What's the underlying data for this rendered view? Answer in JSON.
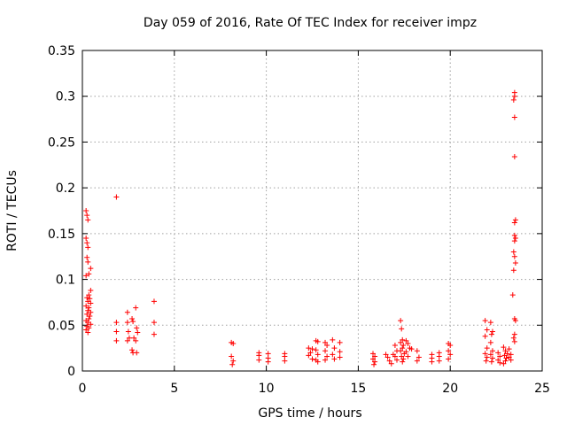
{
  "chart_data": {
    "type": "scatter",
    "title": "Day 059 of 2016, Rate Of TEC Index for receiver impz",
    "xlabel": "GPS time / hours",
    "ylabel": "ROTI / TECUs",
    "xlim": [
      0,
      25
    ],
    "ylim": [
      0,
      0.35
    ],
    "xticks": [
      0,
      5,
      10,
      15,
      20,
      25
    ],
    "yticks": [
      0,
      0.05,
      0.1,
      0.15,
      0.2,
      0.25,
      0.3,
      0.35
    ],
    "xtick_labels": [
      "0",
      "5",
      "10",
      "15",
      "20",
      "25"
    ],
    "ytick_labels": [
      "0",
      "0.05",
      "0.1",
      "0.15",
      "0.2",
      "0.25",
      "0.3",
      "0.35"
    ],
    "grid": true,
    "marker": "+",
    "marker_color": "#ff0000",
    "series": [
      {
        "name": "ROTI",
        "points": [
          [
            0.2,
            0.175
          ],
          [
            0.25,
            0.17
          ],
          [
            0.3,
            0.165
          ],
          [
            0.2,
            0.145
          ],
          [
            0.25,
            0.14
          ],
          [
            0.3,
            0.135
          ],
          [
            0.25,
            0.124
          ],
          [
            0.3,
            0.119
          ],
          [
            0.45,
            0.112
          ],
          [
            0.2,
            0.104
          ],
          [
            0.35,
            0.106
          ],
          [
            0.45,
            0.088
          ],
          [
            0.35,
            0.083
          ],
          [
            0.25,
            0.08
          ],
          [
            0.4,
            0.079
          ],
          [
            0.3,
            0.076
          ],
          [
            0.45,
            0.074
          ],
          [
            0.2,
            0.071
          ],
          [
            0.35,
            0.069
          ],
          [
            0.3,
            0.066
          ],
          [
            0.45,
            0.064
          ],
          [
            0.25,
            0.062
          ],
          [
            0.4,
            0.06
          ],
          [
            0.35,
            0.057
          ],
          [
            0.2,
            0.055
          ],
          [
            0.3,
            0.053
          ],
          [
            0.45,
            0.051
          ],
          [
            0.25,
            0.049
          ],
          [
            0.35,
            0.047
          ],
          [
            0.2,
            0.045
          ],
          [
            0.3,
            0.042
          ],
          [
            1.85,
            0.19
          ],
          [
            1.85,
            0.053
          ],
          [
            1.85,
            0.043
          ],
          [
            1.85,
            0.033
          ],
          [
            2.45,
            0.064
          ],
          [
            2.45,
            0.053
          ],
          [
            2.5,
            0.043
          ],
          [
            2.55,
            0.036
          ],
          [
            2.45,
            0.033
          ],
          [
            2.7,
            0.057
          ],
          [
            2.75,
            0.054
          ],
          [
            2.8,
            0.036
          ],
          [
            2.7,
            0.023
          ],
          [
            2.75,
            0.02
          ],
          [
            2.9,
            0.069
          ],
          [
            2.95,
            0.047
          ],
          [
            3.0,
            0.042
          ],
          [
            2.9,
            0.033
          ],
          [
            2.95,
            0.02
          ],
          [
            3.9,
            0.076
          ],
          [
            3.9,
            0.053
          ],
          [
            3.9,
            0.04
          ],
          [
            8.1,
            0.031
          ],
          [
            8.2,
            0.03
          ],
          [
            8.1,
            0.016
          ],
          [
            8.2,
            0.011
          ],
          [
            8.15,
            0.007
          ],
          [
            9.6,
            0.02
          ],
          [
            9.6,
            0.017
          ],
          [
            9.6,
            0.012
          ],
          [
            10.1,
            0.019
          ],
          [
            10.1,
            0.014
          ],
          [
            10.1,
            0.01
          ],
          [
            11.0,
            0.019
          ],
          [
            11.0,
            0.016
          ],
          [
            11.0,
            0.011
          ],
          [
            12.3,
            0.025
          ],
          [
            12.4,
            0.02
          ],
          [
            12.5,
            0.024
          ],
          [
            12.3,
            0.017
          ],
          [
            12.5,
            0.013
          ],
          [
            12.7,
            0.033
          ],
          [
            12.8,
            0.032
          ],
          [
            12.7,
            0.023
          ],
          [
            12.8,
            0.018
          ],
          [
            12.7,
            0.012
          ],
          [
            12.8,
            0.01
          ],
          [
            13.2,
            0.031
          ],
          [
            13.3,
            0.028
          ],
          [
            13.2,
            0.022
          ],
          [
            13.3,
            0.016
          ],
          [
            13.2,
            0.012
          ],
          [
            13.6,
            0.034
          ],
          [
            13.7,
            0.025
          ],
          [
            13.6,
            0.018
          ],
          [
            13.7,
            0.013
          ],
          [
            14.0,
            0.031
          ],
          [
            14.0,
            0.021
          ],
          [
            14.0,
            0.015
          ],
          [
            15.8,
            0.019
          ],
          [
            15.9,
            0.016
          ],
          [
            15.8,
            0.013
          ],
          [
            15.9,
            0.01
          ],
          [
            15.85,
            0.007
          ],
          [
            16.5,
            0.018
          ],
          [
            16.6,
            0.015
          ],
          [
            16.7,
            0.011
          ],
          [
            16.8,
            0.008
          ],
          [
            16.9,
            0.018
          ],
          [
            17.0,
            0.028
          ],
          [
            17.1,
            0.022
          ],
          [
            17.0,
            0.016
          ],
          [
            17.1,
            0.012
          ],
          [
            17.3,
            0.055
          ],
          [
            17.35,
            0.046
          ],
          [
            17.4,
            0.034
          ],
          [
            17.3,
            0.031
          ],
          [
            17.45,
            0.028
          ],
          [
            17.4,
            0.025
          ],
          [
            17.3,
            0.022
          ],
          [
            17.5,
            0.019
          ],
          [
            17.35,
            0.016
          ],
          [
            17.45,
            0.013
          ],
          [
            17.4,
            0.01
          ],
          [
            17.6,
            0.033
          ],
          [
            17.7,
            0.03
          ],
          [
            17.8,
            0.025
          ],
          [
            17.6,
            0.021
          ],
          [
            17.7,
            0.016
          ],
          [
            17.9,
            0.024
          ],
          [
            18.2,
            0.022
          ],
          [
            18.3,
            0.015
          ],
          [
            18.2,
            0.011
          ],
          [
            19.0,
            0.018
          ],
          [
            19.0,
            0.014
          ],
          [
            19.0,
            0.01
          ],
          [
            19.4,
            0.02
          ],
          [
            19.4,
            0.016
          ],
          [
            19.4,
            0.011
          ],
          [
            19.9,
            0.03
          ],
          [
            20.0,
            0.028
          ],
          [
            19.9,
            0.022
          ],
          [
            20.0,
            0.018
          ],
          [
            19.9,
            0.013
          ],
          [
            21.9,
            0.055
          ],
          [
            22.0,
            0.045
          ],
          [
            21.9,
            0.038
          ],
          [
            22.0,
            0.025
          ],
          [
            21.9,
            0.019
          ],
          [
            22.0,
            0.015
          ],
          [
            21.95,
            0.011
          ],
          [
            22.2,
            0.053
          ],
          [
            22.3,
            0.043
          ],
          [
            22.25,
            0.04
          ],
          [
            22.2,
            0.031
          ],
          [
            22.3,
            0.022
          ],
          [
            22.2,
            0.018
          ],
          [
            22.3,
            0.014
          ],
          [
            22.25,
            0.01
          ],
          [
            22.6,
            0.02
          ],
          [
            22.7,
            0.016
          ],
          [
            22.6,
            0.012
          ],
          [
            22.7,
            0.009
          ],
          [
            22.9,
            0.026
          ],
          [
            23.0,
            0.022
          ],
          [
            23.1,
            0.019
          ],
          [
            22.95,
            0.017
          ],
          [
            23.05,
            0.014
          ],
          [
            23.0,
            0.011
          ],
          [
            22.9,
            0.008
          ],
          [
            23.2,
            0.024
          ],
          [
            23.3,
            0.018
          ],
          [
            23.2,
            0.015
          ],
          [
            23.3,
            0.012
          ],
          [
            23.4,
            0.083
          ],
          [
            23.5,
            0.304
          ],
          [
            23.5,
            0.3
          ],
          [
            23.45,
            0.296
          ],
          [
            23.5,
            0.277
          ],
          [
            23.5,
            0.234
          ],
          [
            23.55,
            0.165
          ],
          [
            23.5,
            0.162
          ],
          [
            23.5,
            0.148
          ],
          [
            23.55,
            0.145
          ],
          [
            23.5,
            0.142
          ],
          [
            23.45,
            0.13
          ],
          [
            23.5,
            0.125
          ],
          [
            23.55,
            0.118
          ],
          [
            23.45,
            0.11
          ],
          [
            23.5,
            0.057
          ],
          [
            23.55,
            0.055
          ],
          [
            23.5,
            0.04
          ],
          [
            23.45,
            0.036
          ],
          [
            23.5,
            0.032
          ]
        ]
      }
    ]
  }
}
